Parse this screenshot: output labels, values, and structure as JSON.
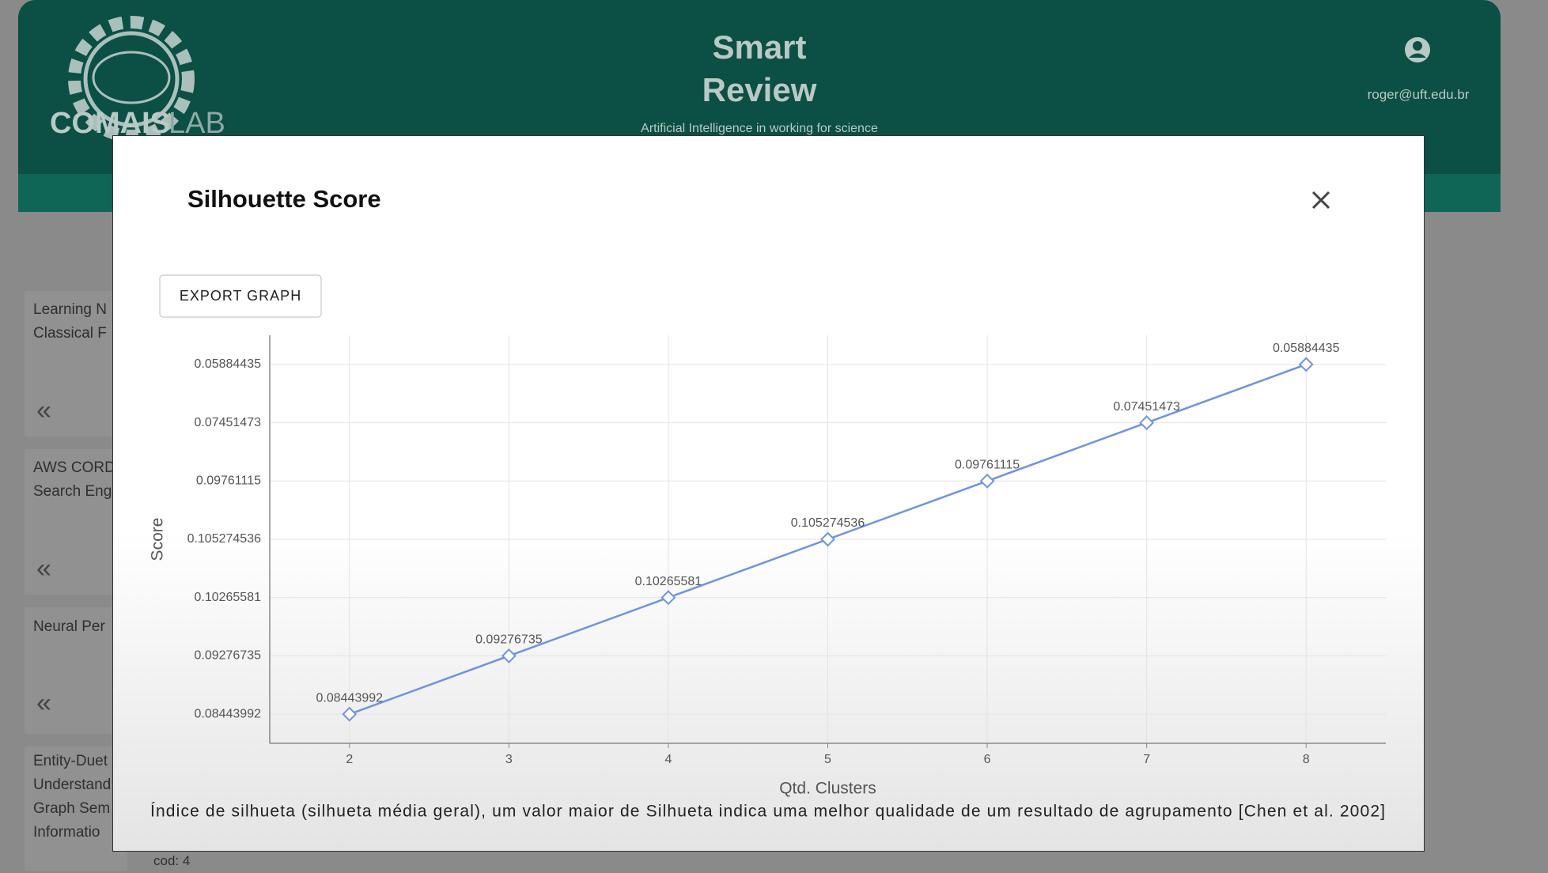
{
  "header": {
    "logo_main": "COMAIS",
    "logo_accent": "LAB",
    "title_line1": "Smart",
    "title_line2": "Review",
    "subtitle": "Artificial Intelligence in working for science",
    "user_email": "roger@uft.edu.br"
  },
  "sidebar": {
    "items": [
      {
        "lines": [
          "Learning N",
          "Classical F"
        ],
        "icon": "«"
      },
      {
        "lines": [
          "AWS CORD",
          "Search Eng"
        ],
        "icon": "«"
      },
      {
        "lines": [
          "Neural Per"
        ],
        "icon": "«"
      },
      {
        "lines": [
          "Entity-Duet",
          "Understand",
          "Graph Sem",
          "Informatio"
        ],
        "code": "cod: 4"
      }
    ]
  },
  "modal": {
    "title": "Silhouette Score",
    "button": "EXPORT GRAPH"
  },
  "chart_data": {
    "type": "line",
    "x": [
      2,
      3,
      4,
      5,
      6,
      7,
      8
    ],
    "values": [
      0.08443992,
      0.09276735,
      0.10265581,
      0.105274536,
      0.09761115,
      0.07451473,
      0.05884435
    ],
    "xlim": [
      1.5,
      8.5
    ],
    "xticks": [
      2,
      3,
      4,
      5,
      6,
      7,
      8
    ],
    "y_axis": "category",
    "x_label": "Qtd. Clusters",
    "y_label": "Score",
    "color": "#6f93e0",
    "grid": true,
    "marker": "diamond",
    "caption": "Índice de silhueta (silhueta média geral), um valor maior de Silhueta indica uma melhor qualidade de um resultado de agrupamento [Chen et al. 2002]"
  }
}
